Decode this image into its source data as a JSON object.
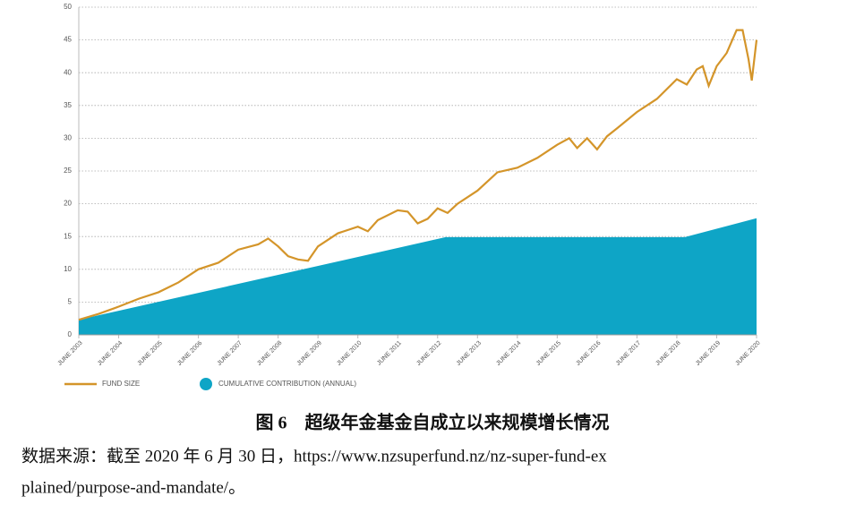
{
  "chart_data": {
    "type": "line",
    "xlim": [
      2003.5,
      2020.5
    ],
    "xticks": [
      {
        "value": 2003.5,
        "label": "JUNE 2003"
      },
      {
        "value": 2004.5,
        "label": "JUNE 2004"
      },
      {
        "value": 2005.5,
        "label": "JUNE 2005"
      },
      {
        "value": 2006.5,
        "label": "JUNE 2006"
      },
      {
        "value": 2007.5,
        "label": "JUNE 2007"
      },
      {
        "value": 2008.5,
        "label": "JUNE 2008"
      },
      {
        "value": 2009.5,
        "label": "JUNE 2009"
      },
      {
        "value": 2010.5,
        "label": "JUNE 2010"
      },
      {
        "value": 2011.5,
        "label": "JUNE 2011"
      },
      {
        "value": 2012.5,
        "label": "JUNE 2012"
      },
      {
        "value": 2013.5,
        "label": "JUNE 2013"
      },
      {
        "value": 2014.5,
        "label": "JUNE 2014"
      },
      {
        "value": 2015.5,
        "label": "JUNE 2015"
      },
      {
        "value": 2016.5,
        "label": "JUNE 2016"
      },
      {
        "value": 2017.5,
        "label": "JUNE 2017"
      },
      {
        "value": 2018.5,
        "label": "JUNE 2018"
      },
      {
        "value": 2019.5,
        "label": "JUNE 2019"
      },
      {
        "value": 2020.5,
        "label": "JUNE 2020"
      }
    ],
    "ylim": [
      0,
      50
    ],
    "yticks": [
      0,
      5,
      10,
      15,
      20,
      25,
      30,
      35,
      40,
      45,
      50
    ],
    "grid": true,
    "series": [
      {
        "name": "FUND SIZE",
        "color": "#d4952a",
        "kind": "line",
        "x": [
          2003.5,
          2004,
          2004.5,
          2005,
          2005.5,
          2006,
          2006.5,
          2007,
          2007.5,
          2008,
          2008.25,
          2008.5,
          2008.75,
          2009,
          2009.25,
          2009.5,
          2010,
          2010.5,
          2010.75,
          2011,
          2011.5,
          2011.75,
          2012,
          2012.25,
          2012.5,
          2012.75,
          2013,
          2013.5,
          2014,
          2014.5,
          2015,
          2015.5,
          2015.8,
          2016,
          2016.25,
          2016.5,
          2016.75,
          2017,
          2017.5,
          2018,
          2018.5,
          2018.75,
          2019,
          2019.15,
          2019.3,
          2019.5,
          2019.75,
          2020,
          2020.15,
          2020.3,
          2020.38,
          2020.5
        ],
        "values": [
          2.3,
          3.2,
          4.3,
          5.5,
          6.5,
          8,
          10,
          11,
          13,
          13.8,
          14.7,
          13.5,
          12,
          11.5,
          11.3,
          13.5,
          15.5,
          16.5,
          15.8,
          17.5,
          19,
          18.8,
          17,
          17.7,
          19.3,
          18.6,
          20,
          22,
          24.8,
          25.5,
          27,
          29,
          30,
          28.5,
          30,
          28.3,
          30.3,
          31.5,
          34,
          36,
          39,
          38.2,
          40.5,
          41,
          38,
          41,
          43,
          46.5,
          46.5,
          42,
          38.8,
          45
        ]
      },
      {
        "name": "CUMULATIVE CONTRIBUTION (ANNUAL)",
        "color": "#0ea5c6",
        "kind": "area",
        "x": [
          2003.5,
          2012.7,
          2018.7,
          2020.5
        ],
        "values": [
          2.3,
          14.9,
          14.9,
          17.8
        ]
      }
    ],
    "caption": "图 6　超级年金基金自成立以来规模增长情况",
    "source": [
      "数据来源：截至 2020 年 6 月 30 日，https://www.nzsuperfund.nz/nz-super-fund-ex",
      "plained/purpose-and-mandate/。"
    ]
  }
}
